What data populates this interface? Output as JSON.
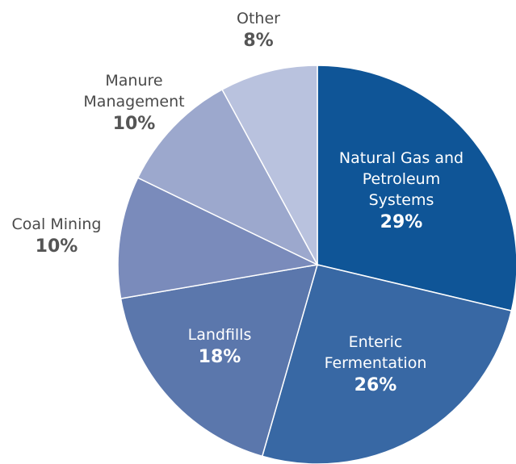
{
  "chart_data": {
    "type": "pie",
    "categories": [
      "Natural Gas and Petroleum Systems",
      "Enteric Fermentation",
      "Landfills",
      "Coal Mining",
      "Manure Management",
      "Other"
    ],
    "values": [
      29,
      26,
      18,
      10,
      10,
      8
    ],
    "value_labels": [
      "29%",
      "26%",
      "18%",
      "10%",
      "10%",
      "8%"
    ],
    "colors": [
      "#0f5597",
      "#3868a4",
      "#5b77ac",
      "#7a8bbb",
      "#9ca8cd",
      "#b9c2de"
    ]
  }
}
